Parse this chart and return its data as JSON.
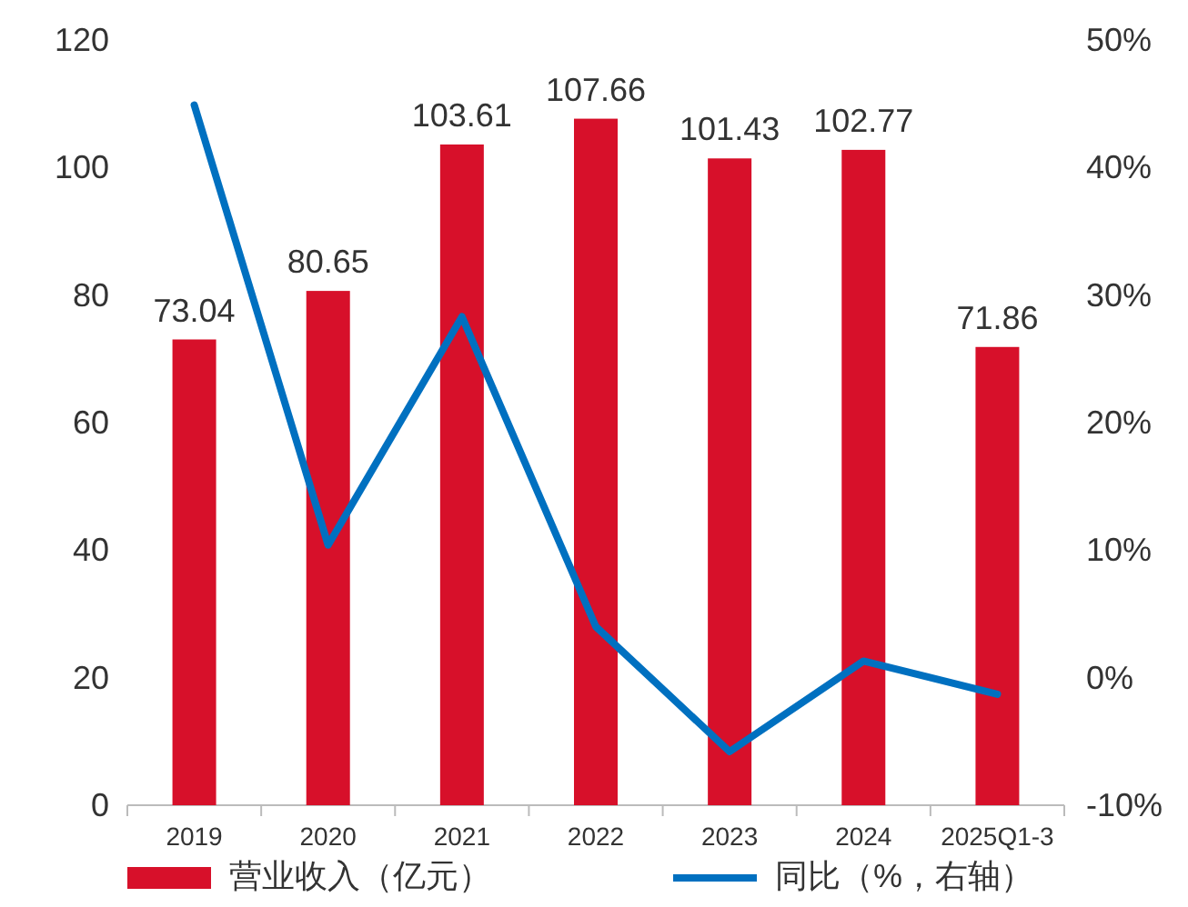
{
  "chart_data": {
    "type": "bar",
    "categories": [
      "2019",
      "2020",
      "2021",
      "2022",
      "2023",
      "2024",
      "2025Q1-3"
    ],
    "series": [
      {
        "name": "营业收入（亿元）",
        "color": "#d7102a",
        "values": [
          73.04,
          80.65,
          103.61,
          107.66,
          101.43,
          102.77,
          71.86
        ],
        "value_labels": [
          "73.04",
          "80.65",
          "103.61",
          "107.66",
          "101.43",
          "102.77",
          "71.86"
        ]
      },
      {
        "name": "同比（%，右轴）",
        "type": "line",
        "axis": "y2",
        "color": "#0070c0",
        "values": [
          44.9,
          10.4,
          28.3,
          4.0,
          -5.8,
          1.3,
          -1.3
        ]
      }
    ],
    "ylim": [
      0,
      120
    ],
    "yticks": [
      0,
      20,
      40,
      60,
      80,
      100,
      120
    ],
    "y2lim": [
      -10,
      50
    ],
    "y2ticks": [
      {
        "value": -10,
        "label": "-10%"
      },
      {
        "value": 0,
        "label": "0%"
      },
      {
        "value": 10,
        "label": "10%"
      },
      {
        "value": 20,
        "label": "20%"
      },
      {
        "value": 30,
        "label": "30%"
      },
      {
        "value": 40,
        "label": "40%"
      },
      {
        "value": 50,
        "label": "50%"
      }
    ],
    "grid": false,
    "legend": "bottom",
    "marker": "none"
  }
}
